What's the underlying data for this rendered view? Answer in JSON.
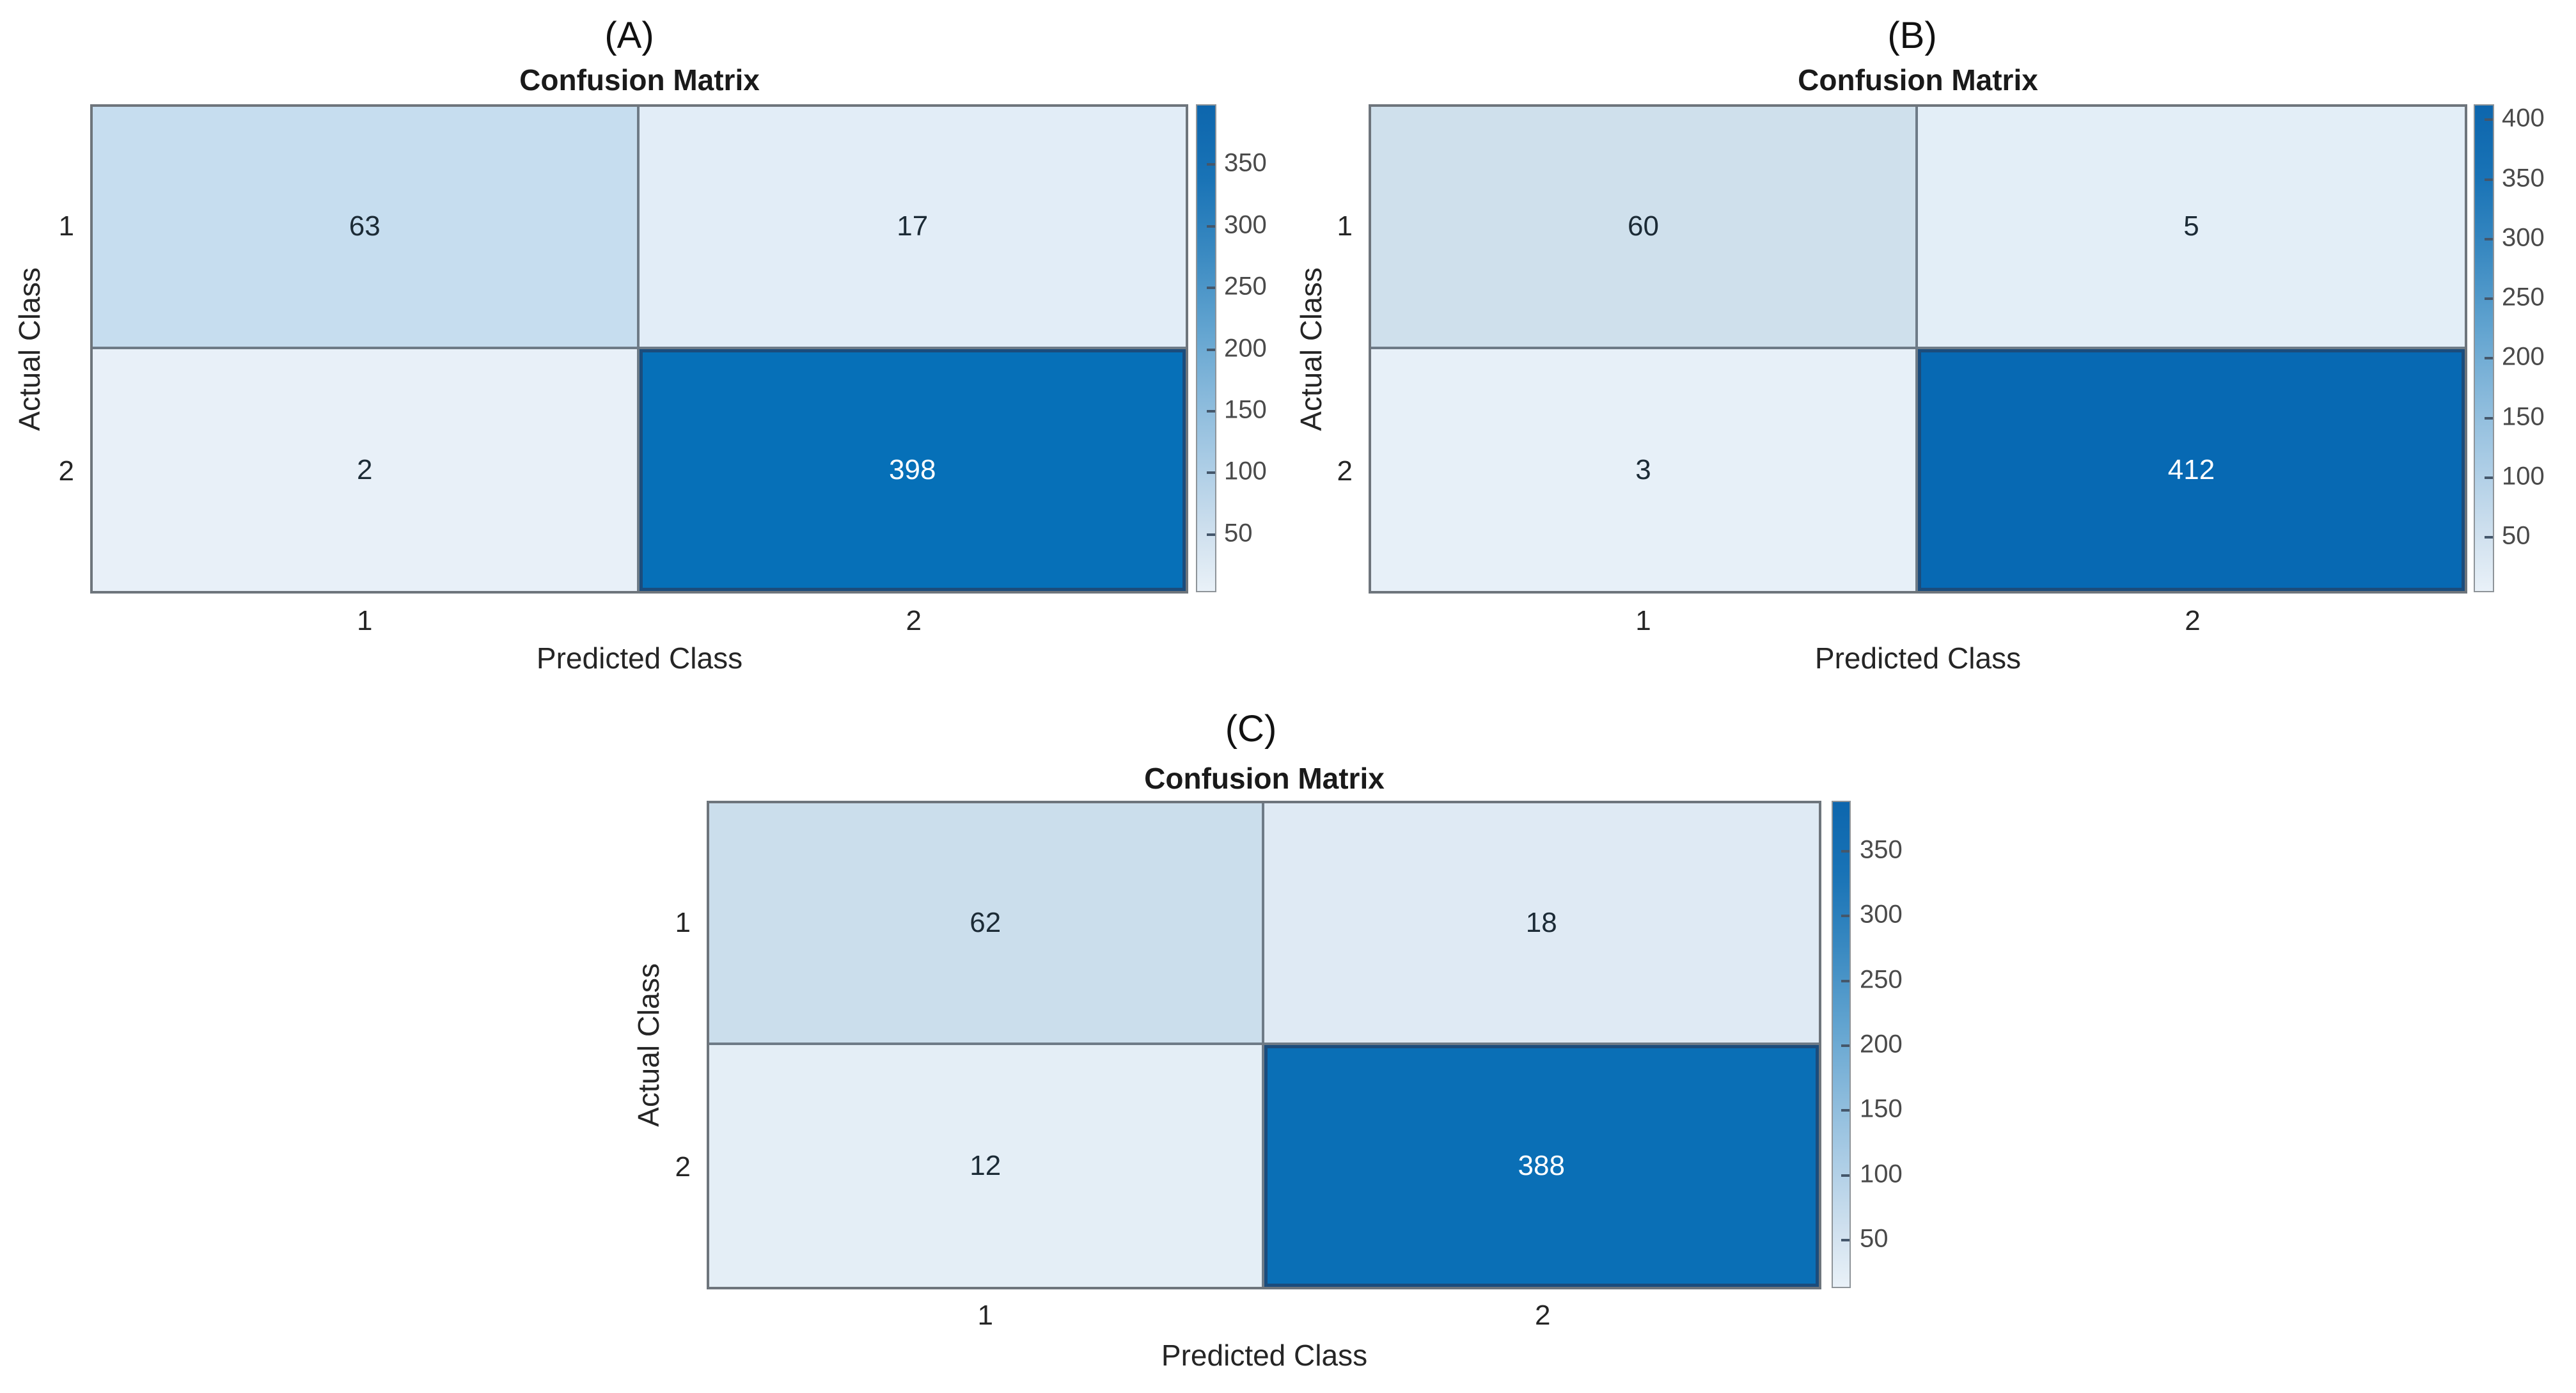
{
  "figure": {
    "background": "#ffffff",
    "description_colors": {
      "heat_low": "#e9f1f8",
      "heat_high": "#0d66ad",
      "grid_line": "#6e7b87",
      "diagonal_cell_edge": "#1b4c7c"
    }
  },
  "chart_data": [
    {
      "type": "heatmap",
      "panel_label": "(A)",
      "title": "Confusion Matrix",
      "xlabel": "Predicted Class",
      "ylabel": "Actual Class",
      "x_tick_labels": [
        "1",
        "2"
      ],
      "y_tick_labels": [
        "1",
        "2"
      ],
      "matrix": [
        [
          63,
          17
        ],
        [
          2,
          398
        ]
      ],
      "cells": [
        [
          {
            "value": "63",
            "bg": "#c6ddef",
            "fg": "#1c2b36"
          },
          {
            "value": "17",
            "bg": "#e2edf7",
            "fg": "#1c2b36"
          }
        ],
        [
          {
            "value": "2",
            "bg": "#e8f0f8",
            "fg": "#1c2b36"
          },
          {
            "value": "398",
            "bg": "#0670b8",
            "fg": "#ffffff",
            "dark": true
          }
        ]
      ],
      "colorbar": {
        "cmin": 2,
        "cmax": 398,
        "ticks": [
          350,
          300,
          250,
          200,
          150,
          100,
          50
        ]
      }
    },
    {
      "type": "heatmap",
      "panel_label": "(B)",
      "title": "Confusion Matrix",
      "xlabel": "Predicted Class",
      "ylabel": "Actual Class",
      "x_tick_labels": [
        "1",
        "2"
      ],
      "y_tick_labels": [
        "1",
        "2"
      ],
      "matrix": [
        [
          60,
          5
        ],
        [
          3,
          412
        ]
      ],
      "cells": [
        [
          {
            "value": "60",
            "bg": "#cfe0ec",
            "fg": "#1c2b36"
          },
          {
            "value": "5",
            "bg": "#e3eef7",
            "fg": "#1c2b36"
          }
        ],
        [
          {
            "value": "3",
            "bg": "#e7f0f8",
            "fg": "#1c2b36"
          },
          {
            "value": "412",
            "bg": "#0769b3",
            "fg": "#ffffff",
            "dark": true
          }
        ]
      ],
      "colorbar": {
        "cmin": 3,
        "cmax": 412,
        "ticks": [
          400,
          350,
          300,
          250,
          200,
          150,
          100,
          50
        ]
      }
    },
    {
      "type": "heatmap",
      "panel_label": "(C)",
      "title": "Confusion Matrix",
      "xlabel": "Predicted Class",
      "ylabel": "Actual Class",
      "x_tick_labels": [
        "1",
        "2"
      ],
      "y_tick_labels": [
        "1",
        "2"
      ],
      "matrix": [
        [
          62,
          18
        ],
        [
          12,
          388
        ]
      ],
      "cells": [
        [
          {
            "value": "62",
            "bg": "#cbdeec",
            "fg": "#1c2b36"
          },
          {
            "value": "18",
            "bg": "#dfeaf4",
            "fg": "#1c2b36"
          }
        ],
        [
          {
            "value": "12",
            "bg": "#e4eef6",
            "fg": "#1c2b36"
          },
          {
            "value": "388",
            "bg": "#0a6fb6",
            "fg": "#ffffff",
            "dark": true
          }
        ]
      ],
      "colorbar": {
        "cmin": 12,
        "cmax": 388,
        "ticks": [
          350,
          300,
          250,
          200,
          150,
          100,
          50
        ]
      }
    }
  ]
}
